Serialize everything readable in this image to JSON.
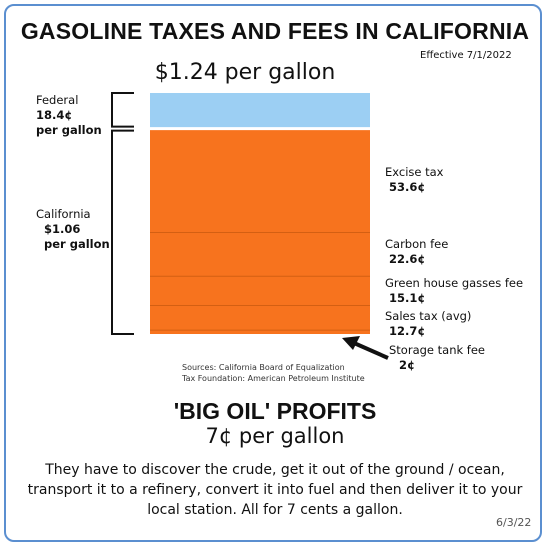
{
  "header": {
    "title": "GASOLINE TAXES AND FEES IN CALIFORNIA",
    "effective": "Effective 7/1/2022",
    "total": "$1.24 per gallon"
  },
  "brackets": {
    "federal": {
      "label": "Federal",
      "value": "18.4¢",
      "unit": "per gallon"
    },
    "california": {
      "label": "California",
      "value": "$1.06",
      "unit": "per gallon"
    }
  },
  "chart_data": {
    "type": "bar",
    "stacked": true,
    "unit": "cents per gallon",
    "total_value": 124,
    "segments": [
      {
        "name": "Federal",
        "value": 18.4,
        "color": "#9ccff3",
        "label": "",
        "value_label": ""
      },
      {
        "name": "Excise tax",
        "value": 53.6,
        "color": "#f7731e",
        "label": "Excise tax",
        "value_label": "53.6¢"
      },
      {
        "name": "Carbon fee",
        "value": 22.6,
        "color": "#f7731e",
        "label": "Carbon fee",
        "value_label": "22.6¢"
      },
      {
        "name": "Green house gasses fee",
        "value": 15.1,
        "color": "#f7731e",
        "label": "Green house gasses fee",
        "value_label": "15.1¢"
      },
      {
        "name": "Sales tax (avg)",
        "value": 12.7,
        "color": "#f7731e",
        "label": "Sales tax (avg)",
        "value_label": "12.7¢"
      },
      {
        "name": "Storage tank fee",
        "value": 2,
        "color": "#f7731e",
        "label": "Storage tank fee",
        "value_label": "2¢"
      }
    ]
  },
  "sources": {
    "line1": "Sources: California Board of Equalization",
    "line2": "Tax Foundation: American Petroleum Institute"
  },
  "profits": {
    "title": "'BIG OIL' PROFITS",
    "value": "7¢ per gallon",
    "description": "They have to discover the crude, get it out of the ground / ocean, transport it to a refinery, convert it into fuel and then deliver it to your local station. All for 7 cents a gallon."
  },
  "footer": {
    "date": "6/3/22"
  },
  "colors": {
    "border": "#5b8fd0",
    "federal": "#9ccff3",
    "california": "#f7731e"
  }
}
